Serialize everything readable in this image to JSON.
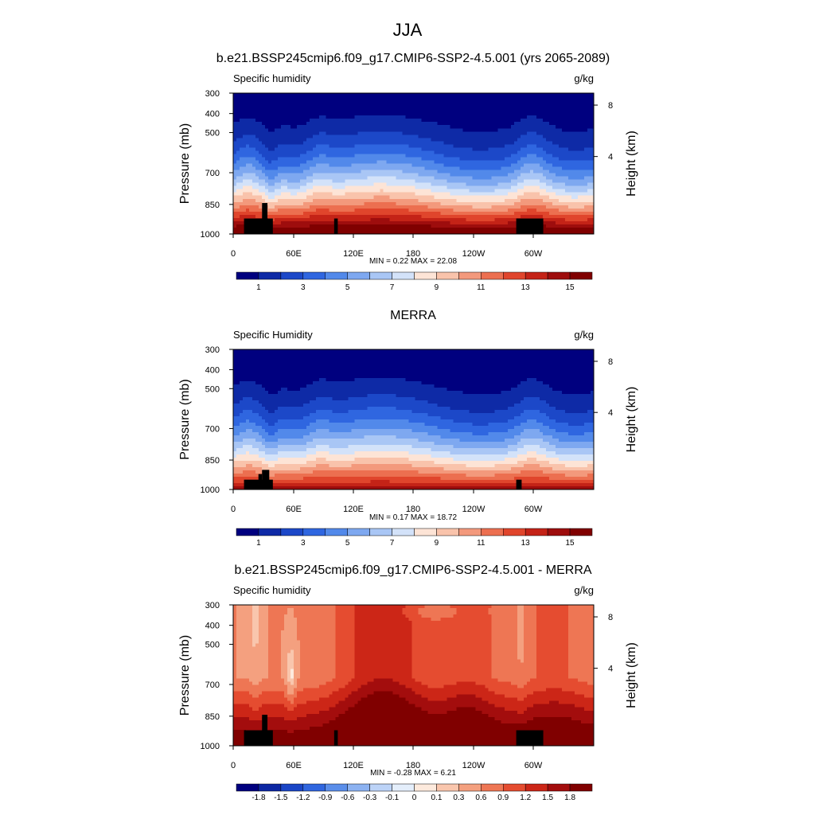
{
  "figure": {
    "season_title": "JJA"
  },
  "chart_data": [
    {
      "type": "heatmap",
      "title": "b.e21.BSSP245cmip6.f09_g17.CMIP6-SSP2-4.5.001 (yrs 2065-2089)",
      "left_label": "Specific humidity",
      "unit_label": "g/kg",
      "ylabel": "Pressure (mb)",
      "y2label": "Height (km)",
      "pressure_ticks": [
        "300",
        "400",
        "500",
        "700",
        "850",
        "1000"
      ],
      "height_ticks": [
        "8",
        "4"
      ],
      "lon_ticks": [
        "0",
        "60E",
        "120E",
        "180",
        "120W",
        "60W"
      ],
      "stats": "MIN =   0.22  MAX =  22.08",
      "min": 0.22,
      "max": 22.08,
      "field": "model",
      "colorbar_labels": [
        "1",
        "3",
        "5",
        "7",
        "9",
        "11",
        "13",
        "15"
      ]
    },
    {
      "type": "heatmap",
      "title": "MERRA",
      "left_label": "Specific Humidity",
      "unit_label": "g/kg",
      "ylabel": "Pressure (mb)",
      "y2label": "Height (km)",
      "pressure_ticks": [
        "300",
        "400",
        "500",
        "700",
        "850",
        "1000"
      ],
      "height_ticks": [
        "8",
        "4"
      ],
      "lon_ticks": [
        "0",
        "60E",
        "120E",
        "180",
        "120W",
        "60W"
      ],
      "stats": "MIN =   0.17  MAX =  18.72",
      "min": 0.17,
      "max": 18.72,
      "field": "obs",
      "colorbar_labels": [
        "1",
        "3",
        "5",
        "7",
        "9",
        "11",
        "13",
        "15"
      ]
    },
    {
      "type": "heatmap",
      "title": "b.e21.BSSP245cmip6.f09_g17.CMIP6-SSP2-4.5.001 - MERRA",
      "left_label": "Specific humidity",
      "unit_label": "g/kg",
      "ylabel": "Pressure (mb)",
      "y2label": "Height (km)",
      "pressure_ticks": [
        "300",
        "400",
        "500",
        "700",
        "850",
        "1000"
      ],
      "height_ticks": [
        "8",
        "4"
      ],
      "lon_ticks": [
        "0",
        "60E",
        "120E",
        "180",
        "120W",
        "60W"
      ],
      "stats": "MIN =  -0.28  MAX =   6.21",
      "min": -0.28,
      "max": 6.21,
      "field": "diff",
      "colorbar_labels": [
        "-1.8",
        "-1.5",
        "-1.2",
        "-0.9",
        "-0.6",
        "-0.3",
        "-0.1",
        "0",
        "0.1",
        "0.3",
        "0.6",
        "0.9",
        "1.2",
        "1.5",
        "1.8"
      ]
    }
  ],
  "colors": {
    "mean_palette": [
      "#00007f",
      "#0e2aa6",
      "#1c48c8",
      "#2f66e0",
      "#5289ea",
      "#7ea8f0",
      "#a9c6f5",
      "#d3e2f9",
      "#fde4d6",
      "#f9c3ab",
      "#f3997c",
      "#ec6f50",
      "#e0452c",
      "#c42317",
      "#9e0d0d",
      "#800000"
    ],
    "diff_palette": [
      "#00007f",
      "#0c27a3",
      "#1a45c6",
      "#3066df",
      "#5a8eea",
      "#8cb2f1",
      "#bcd3f7",
      "#e4eefb",
      "#fdeadd",
      "#f9c6ad",
      "#f4a07f",
      "#ee7654",
      "#e54c30",
      "#cc2617",
      "#a30d0d",
      "#800000"
    ],
    "mask": "#000000"
  }
}
